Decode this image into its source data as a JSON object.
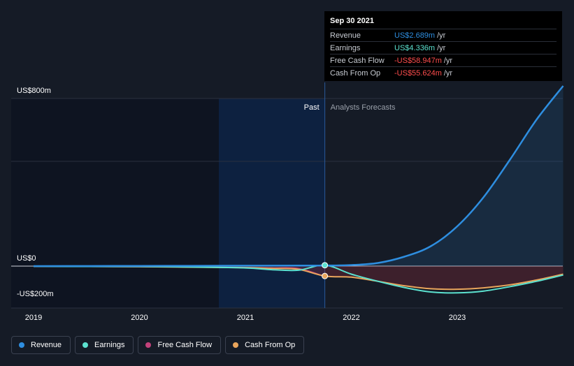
{
  "tooltip": {
    "date": "Sep 30 2021",
    "rows": [
      {
        "label": "Revenue",
        "value": "US$2.689m",
        "unit": "/yr",
        "color": "#2e8ee0"
      },
      {
        "label": "Earnings",
        "value": "US$4.336m",
        "unit": "/yr",
        "color": "#5ce1cf"
      },
      {
        "label": "Free Cash Flow",
        "value": "-US$58.947m",
        "unit": "/yr",
        "color": "#ff4d4d"
      },
      {
        "label": "Cash From Op",
        "value": "-US$55.624m",
        "unit": "/yr",
        "color": "#ff4d4d"
      }
    ]
  },
  "labels": {
    "past": "Past",
    "forecast": "Analysts Forecasts"
  },
  "legend": [
    {
      "label": "Revenue",
      "color": "#2e8ee0"
    },
    {
      "label": "Earnings",
      "color": "#5ce1cf"
    },
    {
      "label": "Free Cash Flow",
      "color": "#c2417a"
    },
    {
      "label": "Cash From Op",
      "color": "#e9a55c"
    }
  ],
  "chart_data": {
    "type": "line",
    "y_ticks": [
      {
        "label": "US$800m",
        "value": 800
      },
      {
        "label": "US$0",
        "value": 0
      },
      {
        "label": "-US$200m",
        "value": -200
      }
    ],
    "x_ticks": [
      {
        "label": "2019",
        "value": 2019.0
      },
      {
        "label": "2020",
        "value": 2020.0
      },
      {
        "label": "2021",
        "value": 2021.0
      },
      {
        "label": "2022",
        "value": 2022.0
      },
      {
        "label": "2023",
        "value": 2023.0
      }
    ],
    "xlim": [
      2018.8,
      2024.0
    ],
    "ylim": [
      -200,
      800
    ],
    "divider_x": 2021.75,
    "series": [
      {
        "name": "Revenue",
        "color": "#2e8ee0",
        "points": [
          [
            2019.0,
            0
          ],
          [
            2019.5,
            0.5
          ],
          [
            2020.0,
            1
          ],
          [
            2020.5,
            1.5
          ],
          [
            2021.0,
            2
          ],
          [
            2021.5,
            2.5
          ],
          [
            2021.75,
            2.7
          ],
          [
            2022.0,
            5
          ],
          [
            2022.25,
            15
          ],
          [
            2022.5,
            45
          ],
          [
            2022.75,
            95
          ],
          [
            2023.0,
            190
          ],
          [
            2023.25,
            330
          ],
          [
            2023.5,
            510
          ],
          [
            2023.75,
            700
          ],
          [
            2024.0,
            860
          ]
        ]
      },
      {
        "name": "Earnings",
        "color": "#5ce1cf",
        "points": [
          [
            2019.0,
            -1
          ],
          [
            2019.5,
            -2
          ],
          [
            2020.0,
            -2
          ],
          [
            2020.5,
            -5
          ],
          [
            2021.0,
            -10
          ],
          [
            2021.25,
            -20
          ],
          [
            2021.5,
            -23
          ],
          [
            2021.75,
            4.3
          ],
          [
            2022.0,
            -45
          ],
          [
            2022.25,
            -85
          ],
          [
            2022.5,
            -120
          ],
          [
            2022.75,
            -145
          ],
          [
            2023.0,
            -150
          ],
          [
            2023.25,
            -140
          ],
          [
            2023.5,
            -115
          ],
          [
            2023.75,
            -85
          ],
          [
            2024.0,
            -50
          ]
        ]
      },
      {
        "name": "Free Cash Flow",
        "color": "#c2417a",
        "points": [
          [
            2019.0,
            -1
          ],
          [
            2019.5,
            -2
          ],
          [
            2020.0,
            -3
          ],
          [
            2020.5,
            -5
          ],
          [
            2021.0,
            -8
          ],
          [
            2021.25,
            -11
          ],
          [
            2021.5,
            -14
          ],
          [
            2021.75,
            -58.9
          ]
        ]
      },
      {
        "name": "Cash From Op",
        "color": "#e9a55c",
        "points": [
          [
            2019.0,
            -1
          ],
          [
            2019.5,
            -2
          ],
          [
            2020.0,
            -3
          ],
          [
            2020.5,
            -6
          ],
          [
            2021.0,
            -9
          ],
          [
            2021.25,
            -13
          ],
          [
            2021.5,
            -18
          ],
          [
            2021.75,
            -55.6
          ],
          [
            2022.0,
            -62
          ],
          [
            2022.25,
            -85
          ],
          [
            2022.5,
            -110
          ],
          [
            2022.75,
            -127
          ],
          [
            2023.0,
            -130
          ],
          [
            2023.25,
            -122
          ],
          [
            2023.5,
            -105
          ],
          [
            2023.75,
            -78
          ],
          [
            2024.0,
            -45
          ]
        ]
      }
    ]
  }
}
